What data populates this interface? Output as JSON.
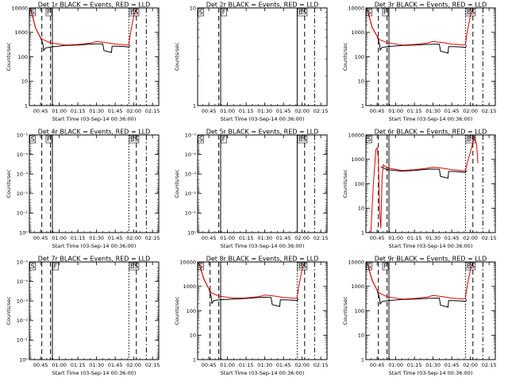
{
  "figure": {
    "background": "#ffffff",
    "event_color": "#000000",
    "lld_color": "#e00000"
  },
  "chart_data": [
    {
      "type": "line",
      "title": "Det 1r BLACK = Events, RED = LLD",
      "ylabel": "Counts/sec",
      "xlabel": "Start Time (03-Sep-14 00:36:00)",
      "x_range": [
        "00:36",
        "02:20"
      ],
      "x_ticks": [
        "00:45",
        "01:00",
        "01:15",
        "01:30",
        "01:45",
        "02:00",
        "02:15"
      ],
      "y_scale": "log",
      "y_range": [
        1,
        10000
      ],
      "y_ticks": [
        "1",
        "10",
        "100",
        "1000",
        "10000"
      ],
      "markers": [
        {
          "label": "S",
          "x": "00:37"
        },
        {
          "label": "F",
          "x": "00:50"
        },
        {
          "label": "BS",
          "x": "01:57"
        }
      ],
      "vlines": [
        {
          "x": "00:46",
          "style": "dash"
        },
        {
          "x": "00:53",
          "style": "dash"
        },
        {
          "x": "00:54.5",
          "style": "solid"
        },
        {
          "x": "01:56",
          "style": "dot"
        },
        {
          "x": "02:02",
          "style": "dash"
        },
        {
          "x": "02:10",
          "style": "dashdot"
        }
      ],
      "series": [
        {
          "name": "BLACK",
          "color": "#000000",
          "x": [
            "00:37",
            "00:41",
            "00:45",
            "00:47",
            "00:47.5",
            "00:49",
            "00:53",
            "01:05",
            "01:15",
            "01:25",
            "01:30",
            "01:35",
            "01:36",
            "01:42",
            "01:42.5",
            "01:47",
            "01:53",
            "01:56",
            "01:57"
          ],
          "y": [
            9000,
            1500,
            600,
            320,
            180,
            230,
            250,
            290,
            300,
            330,
            340,
            340,
            180,
            150,
            270,
            270,
            260,
            250,
            300
          ]
        },
        {
          "name": "RED",
          "color": "#e00000",
          "x": [
            "00:37",
            "00:41",
            "00:45",
            "00:47",
            "00:53",
            "01:05",
            "01:15",
            "01:25",
            "01:30",
            "01:38",
            "01:45",
            "01:50",
            "01:54",
            "01:56",
            "01:57",
            "02:00",
            "02:02"
          ],
          "y": [
            9500,
            1500,
            600,
            500,
            370,
            300,
            320,
            360,
            420,
            380,
            330,
            320,
            300,
            320,
            800,
            5000,
            10000
          ]
        }
      ]
    },
    {
      "type": "line",
      "title": "Det 2r BLACK = Events, RED = LLD",
      "ylabel": "Counts/sec",
      "xlabel": "Start Time (03-Sep-14 00:36:00)",
      "x_range": [
        "00:36",
        "02:20"
      ],
      "x_ticks": [
        "00:45",
        "01:00",
        "01:15",
        "01:30",
        "01:45",
        "02:00",
        "02:15"
      ],
      "y_scale": "log",
      "y_range": [
        1,
        10
      ],
      "y_ticks": [
        "1",
        "10"
      ],
      "markers": [
        {
          "label": "S",
          "x": "00:37"
        },
        {
          "label": "F",
          "x": "00:55.5"
        },
        {
          "label": "BS",
          "x": "01:57"
        }
      ],
      "vlines": [
        {
          "x": "00:53",
          "style": "dash"
        },
        {
          "x": "00:54.5",
          "style": "solid"
        },
        {
          "x": "01:56",
          "style": "solid"
        },
        {
          "x": "02:02",
          "style": "dash"
        },
        {
          "x": "02:10",
          "style": "dashdot"
        }
      ],
      "series": []
    },
    {
      "type": "line",
      "title": "Det 3r BLACK = Events, RED = LLD",
      "ylabel": "Counts/sec",
      "xlabel": "Start Time (03-Sep-14 00:36:00)",
      "x_range": [
        "00:36",
        "02:20"
      ],
      "x_ticks": [
        "00:45",
        "01:00",
        "01:15",
        "01:30",
        "01:45",
        "02:00",
        "02:15"
      ],
      "y_scale": "log",
      "y_range": [
        1,
        10000
      ],
      "y_ticks": [
        "1",
        "10",
        "100",
        "1000",
        "10000"
      ],
      "markers": [
        {
          "label": "S",
          "x": "00:37"
        },
        {
          "label": "F",
          "x": "00:50"
        },
        {
          "label": "BS",
          "x": "01:57"
        }
      ],
      "vlines": [
        {
          "x": "00:46",
          "style": "dash"
        },
        {
          "x": "00:53",
          "style": "dash"
        },
        {
          "x": "00:54.5",
          "style": "solid"
        },
        {
          "x": "01:56",
          "style": "dot"
        },
        {
          "x": "02:02",
          "style": "dash"
        },
        {
          "x": "02:10",
          "style": "dashdot"
        }
      ],
      "series": [
        {
          "name": "BLACK",
          "color": "#000000",
          "x": [
            "00:37",
            "00:41",
            "00:45",
            "00:47",
            "00:47.5",
            "00:49",
            "00:53",
            "01:05",
            "01:15",
            "01:25",
            "01:30",
            "01:35",
            "01:36",
            "01:42",
            "01:42.5",
            "01:47",
            "01:53",
            "01:56",
            "01:57"
          ],
          "y": [
            9000,
            1600,
            700,
            330,
            190,
            240,
            260,
            290,
            300,
            320,
            330,
            330,
            170,
            140,
            260,
            260,
            250,
            240,
            290
          ]
        },
        {
          "name": "RED",
          "color": "#e00000",
          "x": [
            "00:37",
            "00:41",
            "00:45",
            "00:47",
            "00:53",
            "01:05",
            "01:15",
            "01:25",
            "01:30",
            "01:38",
            "01:45",
            "01:50",
            "01:54",
            "01:56",
            "01:57",
            "02:00",
            "02:02"
          ],
          "y": [
            9500,
            1600,
            700,
            500,
            380,
            300,
            320,
            360,
            420,
            380,
            330,
            320,
            300,
            320,
            800,
            5000,
            10000
          ]
        }
      ]
    },
    {
      "type": "line",
      "title": "Det 4r BLACK = Events, RED = LLD",
      "ylabel": "Counts/sec",
      "xlabel": "Start Time (03-Sep-14 00:36:00)",
      "x_range": [
        "00:36",
        "02:20"
      ],
      "x_ticks": [
        "00:45",
        "01:00",
        "01:15",
        "01:30",
        "01:45",
        "02:00",
        "02:15"
      ],
      "y_scale": "log",
      "y_range": [
        1,
        1e-05
      ],
      "y_ticks": [
        "10⁰",
        "10⁻¹",
        "10⁻²",
        "10⁻³",
        "10⁻⁴",
        "10⁻⁵"
      ],
      "markers": [
        {
          "label": "S",
          "x": "00:37"
        },
        {
          "label": "F",
          "x": "00:50"
        },
        {
          "label": "BS",
          "x": "01:57"
        }
      ],
      "vlines": [
        {
          "x": "00:46",
          "style": "dash"
        },
        {
          "x": "00:53",
          "style": "dash"
        },
        {
          "x": "00:54.5",
          "style": "solid"
        },
        {
          "x": "01:56",
          "style": "dot"
        },
        {
          "x": "02:02",
          "style": "dash"
        },
        {
          "x": "02:10",
          "style": "dashdot"
        }
      ],
      "series": []
    },
    {
      "type": "line",
      "title": "Det 5r BLACK = Events, RED = LLD",
      "ylabel": "Counts/sec",
      "xlabel": "Start Time (03-Sep-14 00:36:00)",
      "x_range": [
        "00:36",
        "02:20"
      ],
      "x_ticks": [
        "00:45",
        "01:00",
        "01:15",
        "01:30",
        "01:45",
        "02:00",
        "02:15"
      ],
      "y_scale": "log",
      "y_range": [
        1,
        1e-05
      ],
      "y_ticks": [
        "10⁰",
        "10⁻¹",
        "10⁻²",
        "10⁻³",
        "10⁻⁴",
        "10⁻⁵"
      ],
      "markers": [
        {
          "label": "S",
          "x": "00:37"
        },
        {
          "label": "F",
          "x": "00:55.5"
        },
        {
          "label": "BS",
          "x": "01:57"
        }
      ],
      "vlines": [
        {
          "x": "00:53",
          "style": "dash"
        },
        {
          "x": "00:54.5",
          "style": "solid"
        },
        {
          "x": "01:56",
          "style": "solid"
        },
        {
          "x": "02:02",
          "style": "dash"
        },
        {
          "x": "02:10",
          "style": "dashdot"
        }
      ],
      "series": []
    },
    {
      "type": "line",
      "title": "Det 6r BLACK = Events, RED = LLD",
      "ylabel": "Counts/sec",
      "xlabel": "Start Time (03-Sep-14 00:36:00)",
      "x_range": [
        "00:36",
        "02:20"
      ],
      "x_ticks": [
        "00:45",
        "01:00",
        "01:15",
        "01:30",
        "01:45",
        "02:00",
        "02:15"
      ],
      "y_scale": "log",
      "y_range": [
        1,
        10000
      ],
      "y_ticks": [
        "1",
        "10",
        "100",
        "1000",
        "10000"
      ],
      "markers": [
        {
          "label": "S",
          "x": "00:37"
        },
        {
          "label": "BS",
          "x": "01:57"
        }
      ],
      "vlines": [
        {
          "x": "00:46",
          "style": "dash"
        },
        {
          "x": "00:53",
          "style": "dash"
        },
        {
          "x": "00:54.5",
          "style": "solid"
        },
        {
          "x": "01:56",
          "style": "dot"
        },
        {
          "x": "02:02",
          "style": "dash"
        },
        {
          "x": "02:10",
          "style": "dashdot"
        }
      ],
      "series": [
        {
          "name": "BLACK",
          "color": "#000000",
          "x": [
            "00:48",
            "00:50",
            "00:53",
            "01:05",
            "01:15",
            "01:25",
            "01:30",
            "01:35",
            "01:36",
            "01:42",
            "01:42.5",
            "01:47",
            "01:53",
            "01:56",
            "01:57"
          ],
          "y": [
            500,
            450,
            380,
            330,
            350,
            390,
            400,
            390,
            200,
            170,
            320,
            320,
            300,
            290,
            350
          ]
        },
        {
          "name": "RED",
          "color": "#e00000",
          "x": [
            "00:38",
            "00:40",
            "00:42",
            "00:44",
            "00:45",
            "00:46",
            "00:47",
            "00:48",
            "00:49",
            "00:50",
            "00:53",
            "01:05",
            "01:15",
            "01:25",
            "01:30",
            "01:38",
            "01:45",
            "01:50",
            "01:54",
            "01:56",
            "01:58",
            "02:01",
            "02:03",
            "02:05",
            "02:06"
          ],
          "y": [
            1,
            1.2,
            100,
            2500,
            3000,
            1000,
            8,
            1.5,
            200,
            600,
            450,
            350,
            380,
            430,
            480,
            430,
            380,
            360,
            340,
            350,
            900,
            3000,
            9000,
            4000,
            700
          ]
        }
      ]
    },
    {
      "type": "line",
      "title": "Det 7r BLACK = Events, RED = LLD",
      "ylabel": "Counts/sec",
      "xlabel": "Start Time (03-Sep-14 00:36:00)",
      "x_range": [
        "00:36",
        "02:20"
      ],
      "x_ticks": [
        "00:45",
        "01:00",
        "01:15",
        "01:30",
        "01:45",
        "02:00",
        "02:15"
      ],
      "y_scale": "log",
      "y_range": [
        1,
        1e-05
      ],
      "y_ticks": [
        "10⁰",
        "10⁻¹",
        "10⁻²",
        "10⁻³",
        "10⁻⁴",
        "10⁻⁵"
      ],
      "markers": [
        {
          "label": "S",
          "x": "00:37"
        },
        {
          "label": "F",
          "x": "00:55.5"
        },
        {
          "label": "BS",
          "x": "01:57"
        }
      ],
      "vlines": [
        {
          "x": "00:46",
          "style": "dash"
        },
        {
          "x": "00:53",
          "style": "dash"
        },
        {
          "x": "00:54.5",
          "style": "solid"
        },
        {
          "x": "01:56",
          "style": "dot"
        },
        {
          "x": "02:02",
          "style": "dash"
        },
        {
          "x": "02:10",
          "style": "dashdot"
        }
      ],
      "series": []
    },
    {
      "type": "line",
      "title": "Det 8r BLACK = Events, RED = LLD",
      "ylabel": "Counts/sec",
      "xlabel": "Start Time (03-Sep-14 00:36:00)",
      "x_range": [
        "00:36",
        "02:20"
      ],
      "x_ticks": [
        "00:45",
        "01:00",
        "01:15",
        "01:30",
        "01:45",
        "02:00",
        "02:15"
      ],
      "y_scale": "log",
      "y_range": [
        1,
        10000
      ],
      "y_ticks": [
        "1",
        "10",
        "100",
        "1000",
        "10000"
      ],
      "markers": [
        {
          "label": "S",
          "x": "00:37"
        },
        {
          "label": "BS",
          "x": "01:57"
        }
      ],
      "vlines": [
        {
          "x": "00:46",
          "style": "dash"
        },
        {
          "x": "00:53",
          "style": "dash"
        },
        {
          "x": "00:54.5",
          "style": "solid"
        },
        {
          "x": "01:56",
          "style": "dot"
        },
        {
          "x": "02:02",
          "style": "dash"
        },
        {
          "x": "02:10",
          "style": "dashdot"
        }
      ],
      "series": [
        {
          "name": "BLACK",
          "color": "#000000",
          "x": [
            "00:37",
            "00:41",
            "00:45",
            "00:47",
            "00:47.5",
            "00:49",
            "00:53",
            "01:05",
            "01:15",
            "01:25",
            "01:30",
            "01:35",
            "01:36",
            "01:42",
            "01:42.5",
            "01:47",
            "01:53",
            "01:56",
            "01:57"
          ],
          "y": [
            9000,
            2000,
            800,
            380,
            200,
            260,
            280,
            300,
            320,
            350,
            360,
            350,
            180,
            150,
            280,
            280,
            270,
            260,
            310
          ]
        },
        {
          "name": "RED",
          "color": "#e00000",
          "x": [
            "00:37",
            "00:41",
            "00:45",
            "00:47",
            "00:53",
            "01:05",
            "01:15",
            "01:25",
            "01:30",
            "01:38",
            "01:45",
            "01:50",
            "01:54",
            "01:56",
            "01:57",
            "02:00",
            "02:02"
          ],
          "y": [
            9500,
            2000,
            800,
            550,
            400,
            330,
            340,
            380,
            440,
            400,
            350,
            340,
            320,
            340,
            850,
            5000,
            10000
          ]
        }
      ]
    },
    {
      "type": "line",
      "title": "Det 9r BLACK = Events, RED = LLD",
      "ylabel": "Counts/sec",
      "xlabel": "Start Time (03-Sep-14 00:36:00)",
      "x_range": [
        "00:36",
        "02:20"
      ],
      "x_ticks": [
        "00:45",
        "01:00",
        "01:15",
        "01:30",
        "01:45",
        "02:00",
        "02:15"
      ],
      "y_scale": "log",
      "y_range": [
        1,
        10000
      ],
      "y_ticks": [
        "1",
        "10",
        "100",
        "1000",
        "10000"
      ],
      "markers": [
        {
          "label": "S",
          "x": "00:37"
        },
        {
          "label": "F",
          "x": "00:50"
        },
        {
          "label": "BS",
          "x": "01:57"
        }
      ],
      "vlines": [
        {
          "x": "00:46",
          "style": "dash"
        },
        {
          "x": "00:53",
          "style": "dash"
        },
        {
          "x": "00:54.5",
          "style": "solid"
        },
        {
          "x": "01:56",
          "style": "dot"
        },
        {
          "x": "02:02",
          "style": "dash"
        },
        {
          "x": "02:10",
          "style": "dashdot"
        }
      ],
      "series": [
        {
          "name": "BLACK",
          "color": "#000000",
          "x": [
            "00:37",
            "00:41",
            "00:45",
            "00:47",
            "00:47.5",
            "00:49",
            "00:53",
            "01:05",
            "01:15",
            "01:25",
            "01:30",
            "01:35",
            "01:36",
            "01:42",
            "01:42.5",
            "01:47",
            "01:53",
            "01:56",
            "01:57"
          ],
          "y": [
            9000,
            1800,
            700,
            330,
            190,
            240,
            260,
            290,
            300,
            320,
            330,
            330,
            170,
            140,
            260,
            260,
            250,
            240,
            290
          ]
        },
        {
          "name": "RED",
          "color": "#e00000",
          "x": [
            "00:37",
            "00:41",
            "00:45",
            "00:47",
            "00:53",
            "01:05",
            "01:15",
            "01:25",
            "01:30",
            "01:38",
            "01:45",
            "01:50",
            "01:54",
            "01:56",
            "01:57",
            "02:00",
            "02:02"
          ],
          "y": [
            9500,
            1800,
            700,
            520,
            380,
            300,
            320,
            360,
            420,
            380,
            330,
            320,
            300,
            320,
            800,
            5000,
            10000
          ]
        }
      ]
    }
  ]
}
